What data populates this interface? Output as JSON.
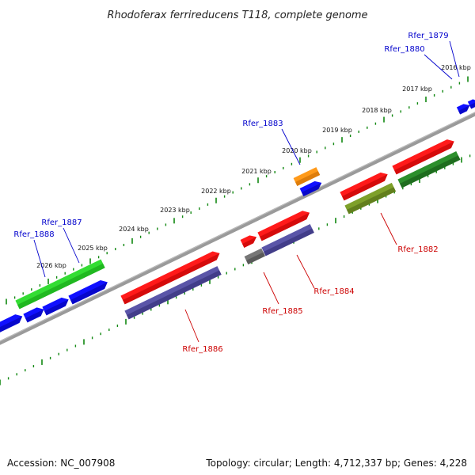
{
  "title": "Rhodoferax ferrireducens T118, complete genome",
  "footer": {
    "accession": "Accession: NC_007908",
    "topology": "Topology: circular; Length: 4,712,337 bp; Genes: 4,228"
  },
  "colors": {
    "backbone": "#808080",
    "ticks": "#118811",
    "label_forward": "#0000cc",
    "label_reverse": "#cc0000"
  },
  "kbp_labels": [
    "2016 kbp",
    "2017 kbp",
    "2018 kbp",
    "2019 kbp",
    "2020 kbp",
    "2021 kbp",
    "2022 kbp",
    "2023 kbp",
    "2024 kbp",
    "2025 kbp",
    "2026 kbp"
  ],
  "gene_labels": [
    {
      "text": "Rfer_1879",
      "strand": "forward"
    },
    {
      "text": "Rfer_1880",
      "strand": "forward"
    },
    {
      "text": "Rfer_1883",
      "strand": "forward"
    },
    {
      "text": "Rfer_1887",
      "strand": "forward"
    },
    {
      "text": "Rfer_1888",
      "strand": "forward"
    },
    {
      "text": "Rfer_1882",
      "strand": "reverse"
    },
    {
      "text": "Rfer_1884",
      "strand": "reverse"
    },
    {
      "text": "Rfer_1885",
      "strand": "reverse"
    },
    {
      "text": "Rfer_1886",
      "strand": "reverse"
    }
  ]
}
